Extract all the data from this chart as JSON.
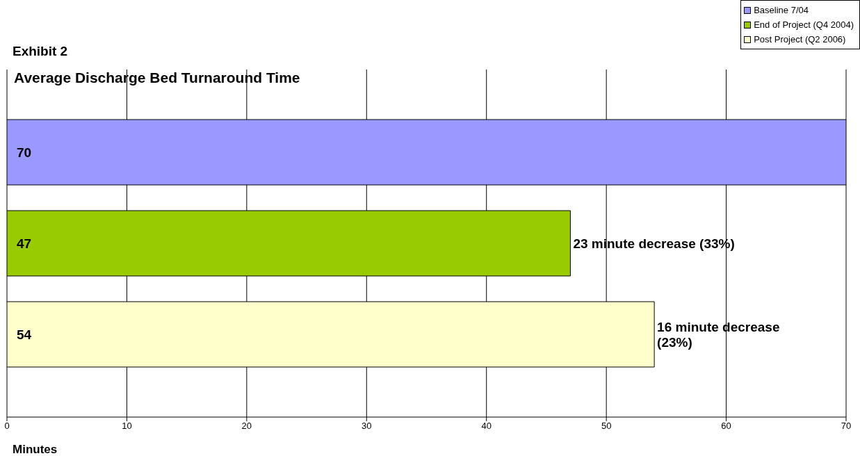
{
  "chart_data": {
    "type": "bar",
    "orientation": "horizontal",
    "title": "Exhibit 2",
    "subtitle": "Average Discharge Bed Turnaround Time",
    "xlabel": "Minutes",
    "categories": [
      null
    ],
    "series": [
      {
        "name": "Baseline 7/04",
        "color": "#9999ff",
        "values": [
          70
        ]
      },
      {
        "name": "End of Project (Q4 2004)",
        "color": "#99cc00",
        "values": [
          47
        ]
      },
      {
        "name": "Post Project (Q2 2006)",
        "color": "#ffffcc",
        "values": [
          54
        ]
      }
    ],
    "xlim": [
      0,
      70
    ],
    "xticks": [
      0,
      10,
      20,
      30,
      40,
      50,
      60,
      70
    ],
    "grid": "x",
    "legend": "top right",
    "data_labels": true,
    "annotations": [
      {
        "text": "23 minute decrease (33%)",
        "x": 47
      },
      {
        "text": "16 minute decrease (23%)",
        "x": 54
      }
    ]
  }
}
